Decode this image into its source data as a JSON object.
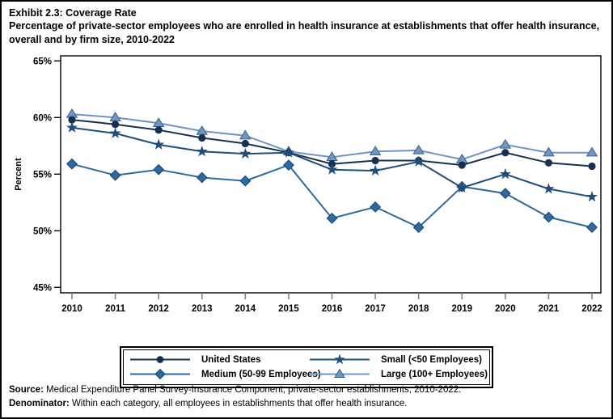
{
  "title": "Exhibit 2.3: Coverage Rate",
  "subtitle": "Percentage of private-sector employees who are enrolled in health insurance at establishments that offer health insurance, overall and by firm size, 2010-2022",
  "footer": {
    "source_label": "Source:",
    "source_text": " Medical Expenditure Panel Survey-Insurance Component, private-sector establishments, 2010-2022.",
    "denominator_label": "Denominator:",
    "denominator_text": " Within each category, all employees in establishments that offer health insurance."
  },
  "chart_data": {
    "type": "line",
    "title": "Exhibit 2.3: Coverage Rate",
    "xlabel": "",
    "ylabel": "Percent",
    "x": [
      2010,
      2011,
      2012,
      2013,
      2014,
      2015,
      2016,
      2017,
      2018,
      2019,
      2020,
      2021,
      2022
    ],
    "ylim": [
      45,
      65
    ],
    "yticks": [
      45,
      50,
      55,
      60,
      65
    ],
    "ytick_labels": [
      "45%",
      "50%",
      "55%",
      "60%",
      "65%"
    ],
    "grid": false,
    "legend_position": "bottom",
    "series": [
      {
        "name": "Large (100+ Employees)",
        "marker": "triangle",
        "color": "#6f95c0",
        "edge": "#35638f",
        "values": [
          60.3,
          60.0,
          59.5,
          58.8,
          58.4,
          57.0,
          56.5,
          57.0,
          57.1,
          56.3,
          57.6,
          56.9,
          56.9
        ]
      },
      {
        "name": "Medium (50-99 Employees)",
        "marker": "diamond",
        "color": "#2e6a9e",
        "edge": "#17406b",
        "values": [
          55.9,
          54.9,
          55.4,
          54.7,
          54.4,
          55.8,
          51.1,
          52.1,
          50.3,
          53.9,
          53.3,
          51.2,
          50.3
        ]
      },
      {
        "name": "United States",
        "marker": "circle",
        "color": "#17304f",
        "edge": "#17304f",
        "values": [
          59.8,
          59.4,
          58.9,
          58.2,
          57.7,
          56.9,
          55.9,
          56.2,
          56.2,
          55.8,
          56.9,
          56.0,
          55.7
        ]
      },
      {
        "name": "Small (<50 Employees)",
        "marker": "star",
        "color": "#1f4e79",
        "edge": "#1f4e79",
        "values": [
          59.1,
          58.6,
          57.6,
          57.0,
          56.8,
          56.9,
          55.4,
          55.3,
          56.1,
          53.8,
          55.0,
          53.7,
          53.0
        ]
      }
    ]
  },
  "legend": {
    "items": [
      {
        "label": "United States",
        "marker": "circle",
        "color": "#17304f",
        "edge": "#17304f"
      },
      {
        "label": "Small (<50 Employees)",
        "marker": "star",
        "color": "#1f4e79",
        "edge": "#1f4e79"
      },
      {
        "label": "Medium (50-99 Employees)",
        "marker": "diamond",
        "color": "#2e6a9e",
        "edge": "#17406b"
      },
      {
        "label": "Large (100+ Employees)",
        "marker": "triangle",
        "color": "#6f95c0",
        "edge": "#35638f"
      }
    ]
  }
}
